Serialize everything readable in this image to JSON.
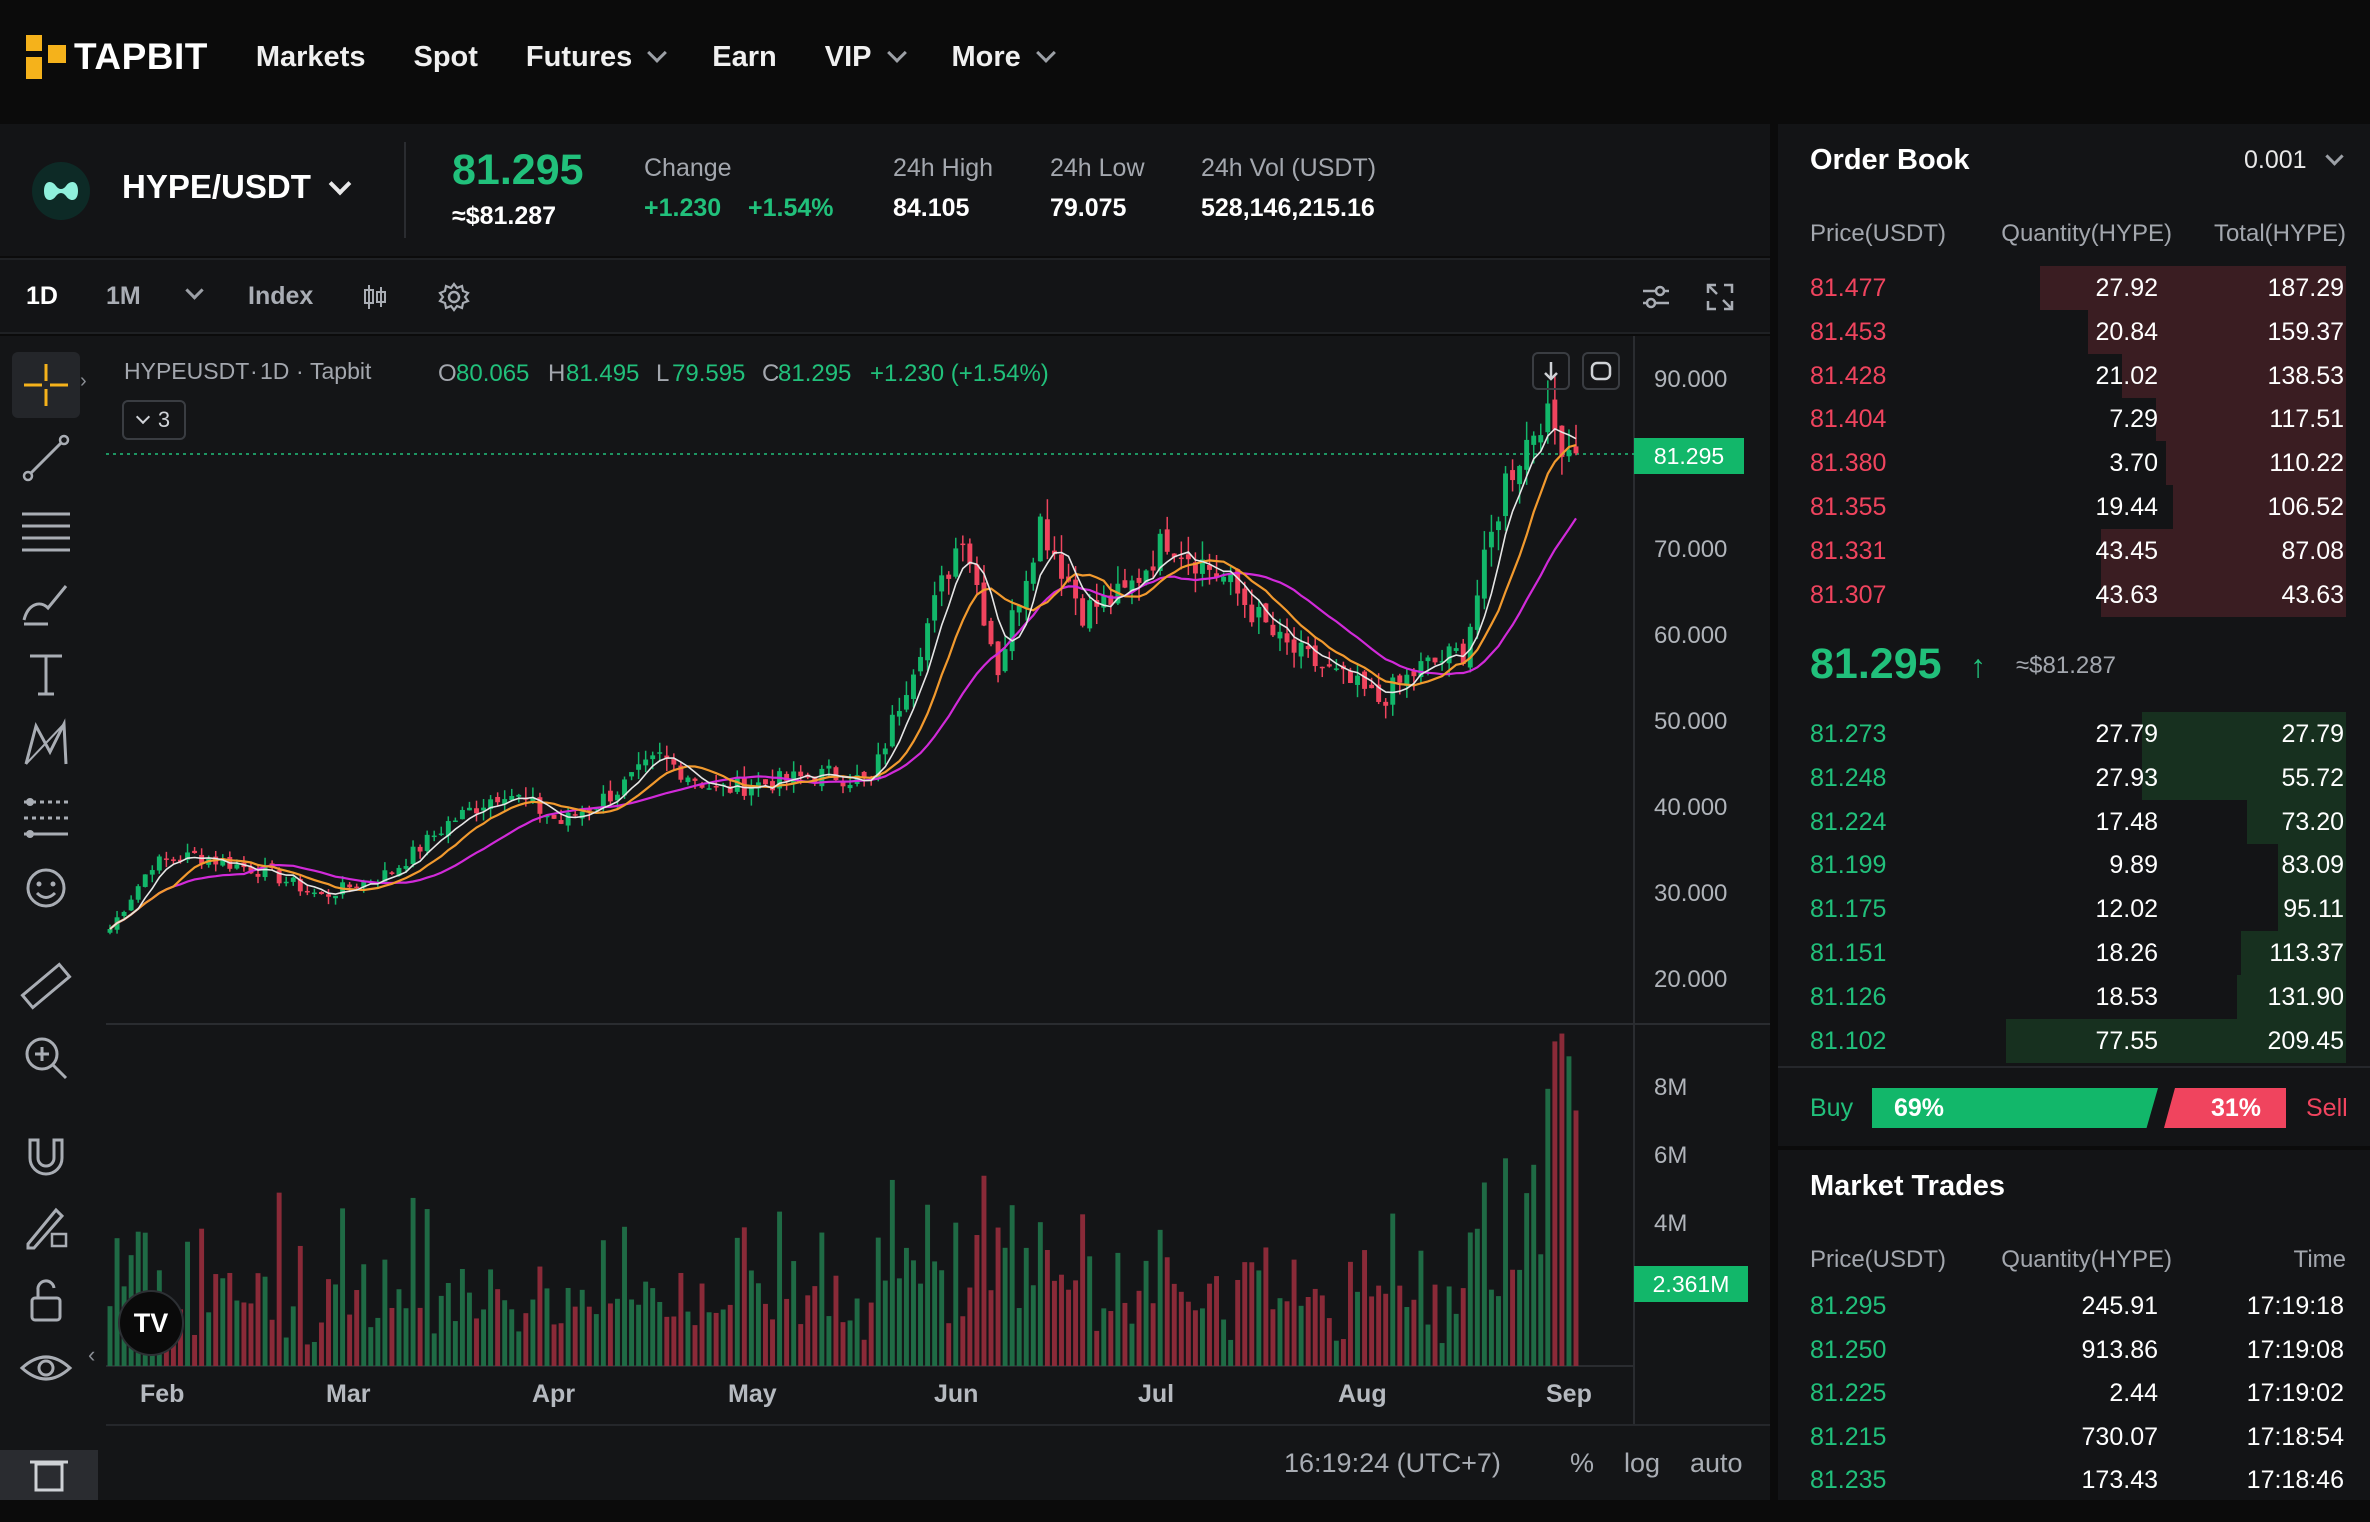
{
  "brand": {
    "name": "TAPBIT",
    "accent": "#f5b21b"
  },
  "nav": {
    "items": [
      {
        "label": "Markets",
        "dropdown": false
      },
      {
        "label": "Spot",
        "dropdown": false
      },
      {
        "label": "Futures",
        "dropdown": true
      },
      {
        "label": "Earn",
        "dropdown": false
      },
      {
        "label": "VIP",
        "dropdown": true
      },
      {
        "label": "More",
        "dropdown": true
      }
    ]
  },
  "pair": {
    "name": "HYPE/USDT",
    "last_price": "81.295",
    "last_fiat": "≈$81.287",
    "change_label": "Change",
    "change_abs": "+1.230",
    "change_pct": "+1.54%",
    "high_label": "24h High",
    "high_value": "84.105",
    "low_label": "24h Low",
    "low_value": "79.075",
    "vol_label": "24h Vol (USDT)",
    "vol_value": "528,146,215.16"
  },
  "toolbar": {
    "interval": "1D",
    "interval_menu": "1M",
    "index": "Index"
  },
  "chart_data": {
    "type": "candlestick",
    "symbol": "HYPEUSDT",
    "interval": "1D",
    "exchange": "Tapbit",
    "ohlc": {
      "o_label": "O",
      "o": "80.065",
      "h_label": "H",
      "h": "81.495",
      "l_label": "L",
      "l": "79.595",
      "c_label": "C",
      "c": "81.295",
      "change": "+1.230 (+1.54%)"
    },
    "indicator_count": "3",
    "price_ticks": [
      "90.000",
      "70.000",
      "60.000",
      "50.000",
      "40.000",
      "30.000",
      "20.000"
    ],
    "price_range": [
      16,
      92
    ],
    "last_price_tag": "81.295",
    "volume_ticks": [
      "8M",
      "6M",
      "4M"
    ],
    "volume_range": [
      0,
      9
    ],
    "last_volume_tag": "2.361M",
    "months": [
      "Feb",
      "Mar",
      "Apr",
      "May",
      "Jun",
      "Jul",
      "Aug",
      "Sep"
    ],
    "close_anchors": [
      {
        "day": 0,
        "close": 23
      },
      {
        "day": 6,
        "close": 31
      },
      {
        "day": 12,
        "close": 32
      },
      {
        "day": 22,
        "close": 30
      },
      {
        "day": 30,
        "close": 27
      },
      {
        "day": 40,
        "close": 30
      },
      {
        "day": 48,
        "close": 36
      },
      {
        "day": 56,
        "close": 40
      },
      {
        "day": 64,
        "close": 36
      },
      {
        "day": 72,
        "close": 40
      },
      {
        "day": 78,
        "close": 44
      },
      {
        "day": 86,
        "close": 40
      },
      {
        "day": 94,
        "close": 41
      },
      {
        "day": 102,
        "close": 42
      },
      {
        "day": 108,
        "close": 41
      },
      {
        "day": 115,
        "close": 58
      },
      {
        "day": 121,
        "close": 72
      },
      {
        "day": 126,
        "close": 55
      },
      {
        "day": 132,
        "close": 73
      },
      {
        "day": 138,
        "close": 62
      },
      {
        "day": 144,
        "close": 64
      },
      {
        "day": 150,
        "close": 71
      },
      {
        "day": 158,
        "close": 66
      },
      {
        "day": 166,
        "close": 58
      },
      {
        "day": 174,
        "close": 54
      },
      {
        "day": 180,
        "close": 51
      },
      {
        "day": 186,
        "close": 55
      },
      {
        "day": 192,
        "close": 57
      },
      {
        "day": 198,
        "close": 78
      },
      {
        "day": 203,
        "close": 86
      },
      {
        "day": 208,
        "close": 81.3
      }
    ],
    "colors": {
      "up": "#12b76a",
      "down": "#f0445e",
      "ma_fast": "#e6e6e6",
      "ma_mid": "#f29a2e",
      "ma_slow": "#d12ad9"
    }
  },
  "chart_footer": {
    "time": "16:19:24 (UTC+7)",
    "percent": "%",
    "log": "log",
    "auto": "auto"
  },
  "orderbook": {
    "title": "Order Book",
    "precision": "0.001",
    "headers": [
      "Price(USDT)",
      "Quantity(HYPE)",
      "Total(HYPE)"
    ],
    "asks": [
      {
        "price": "81.477",
        "qty": "27.92",
        "total": "187.29",
        "depth": 0.9
      },
      {
        "price": "81.453",
        "qty": "20.84",
        "total": "159.37",
        "depth": 0.76
      },
      {
        "price": "81.428",
        "qty": "21.02",
        "total": "138.53",
        "depth": 0.66
      },
      {
        "price": "81.404",
        "qty": "7.29",
        "total": "117.51",
        "depth": 0.56
      },
      {
        "price": "81.380",
        "qty": "3.70",
        "total": "110.22",
        "depth": 0.53
      },
      {
        "price": "81.355",
        "qty": "19.44",
        "total": "106.52",
        "depth": 0.51
      },
      {
        "price": "81.331",
        "qty": "43.45",
        "total": "87.08",
        "depth": 0.72
      },
      {
        "price": "81.307",
        "qty": "43.63",
        "total": "43.63",
        "depth": 0.72
      }
    ],
    "mid": {
      "price": "81.295",
      "arrow": "↑",
      "fiat": "≈$81.287"
    },
    "bids": [
      {
        "price": "81.273",
        "qty": "27.79",
        "total": "27.79",
        "depth": 0.6
      },
      {
        "price": "81.248",
        "qty": "27.93",
        "total": "55.72",
        "depth": 0.6
      },
      {
        "price": "81.224",
        "qty": "17.48",
        "total": "73.20",
        "depth": 0.29
      },
      {
        "price": "81.199",
        "qty": "9.89",
        "total": "83.09",
        "depth": 0.2
      },
      {
        "price": "81.175",
        "qty": "12.02",
        "total": "95.11",
        "depth": 0.2
      },
      {
        "price": "81.151",
        "qty": "18.26",
        "total": "113.37",
        "depth": 0.31
      },
      {
        "price": "81.126",
        "qty": "18.53",
        "total": "131.90",
        "depth": 0.32
      },
      {
        "price": "81.102",
        "qty": "77.55",
        "total": "209.45",
        "depth": 1.0
      }
    ],
    "buy_label": "Buy",
    "buy_pct": "69%",
    "buy_ratio": 0.69,
    "sell_label": "Sell",
    "sell_pct": "31%"
  },
  "trades": {
    "title": "Market Trades",
    "headers": [
      "Price(USDT)",
      "Quantity(HYPE)",
      "Time"
    ],
    "rows": [
      {
        "price": "81.295",
        "qty": "245.91",
        "time": "17:19:18"
      },
      {
        "price": "81.250",
        "qty": "913.86",
        "time": "17:19:08"
      },
      {
        "price": "81.225",
        "qty": "2.44",
        "time": "17:19:02"
      },
      {
        "price": "81.215",
        "qty": "730.07",
        "time": "17:18:54"
      },
      {
        "price": "81.235",
        "qty": "173.43",
        "time": "17:18:46"
      }
    ]
  }
}
